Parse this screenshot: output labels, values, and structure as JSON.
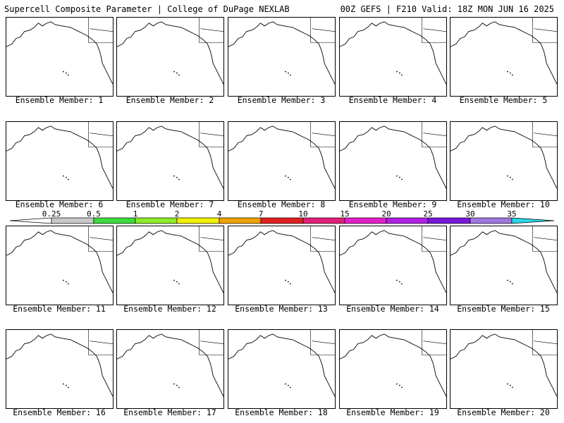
{
  "header": {
    "title_left": "Supercell Composite Parameter | College of DuPage NEXLAB",
    "title_right": "00Z GEFS | F210 Valid: 18Z MON JUN 16 2025"
  },
  "colorbar": {
    "ticks": [
      "0.25",
      "0.5",
      "1",
      "2",
      "4",
      "7",
      "10",
      "15",
      "20",
      "25",
      "30",
      "35"
    ],
    "colors": [
      "#ffffff",
      "#c8c8c8",
      "#3cdc3c",
      "#8cec2c",
      "#f0f000",
      "#f0a000",
      "#e02020",
      "#e0207a",
      "#e020c8",
      "#b020e8",
      "#7818d8",
      "#a078e0",
      "#28d8e8"
    ]
  },
  "members": [
    {
      "label": "Ensemble Member: 1"
    },
    {
      "label": "Ensemble Member: 2"
    },
    {
      "label": "Ensemble Member: 3"
    },
    {
      "label": "Ensemble Member: 4"
    },
    {
      "label": "Ensemble Member: 5"
    },
    {
      "label": "Ensemble Member: 6"
    },
    {
      "label": "Ensemble Member: 7"
    },
    {
      "label": "Ensemble Member: 8"
    },
    {
      "label": "Ensemble Member: 9"
    },
    {
      "label": "Ensemble Member: 10"
    },
    {
      "label": "Ensemble Member: 11"
    },
    {
      "label": "Ensemble Member: 12"
    },
    {
      "label": "Ensemble Member: 13"
    },
    {
      "label": "Ensemble Member: 14"
    },
    {
      "label": "Ensemble Member: 15"
    },
    {
      "label": "Ensemble Member: 16"
    },
    {
      "label": "Ensemble Member: 17"
    },
    {
      "label": "Ensemble Member: 18"
    },
    {
      "label": "Ensemble Member: 19"
    },
    {
      "label": "Ensemble Member: 20"
    }
  ]
}
